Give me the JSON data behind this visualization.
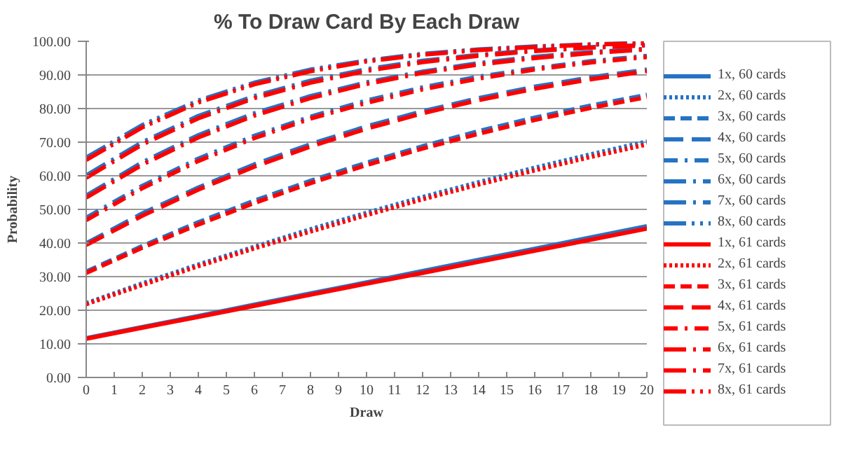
{
  "chart_data": {
    "type": "line",
    "title": "% To Draw Card By Each Draw",
    "xlabel": "Draw",
    "ylabel": "Probability",
    "x": [
      0,
      2,
      4,
      6,
      8,
      10,
      12,
      14,
      16,
      18,
      20
    ],
    "xlim": [
      0,
      20
    ],
    "xticks": [
      0,
      1,
      2,
      3,
      4,
      5,
      6,
      7,
      8,
      9,
      10,
      11,
      12,
      13,
      14,
      15,
      16,
      17,
      18,
      19,
      20
    ],
    "ylim": [
      0,
      100
    ],
    "yticks": [
      {
        "value": 0,
        "label": "0.00"
      },
      {
        "value": 10,
        "label": "10.00"
      },
      {
        "value": 20,
        "label": "20.00"
      },
      {
        "value": 30,
        "label": "30.00"
      },
      {
        "value": 40,
        "label": "40.00"
      },
      {
        "value": 50,
        "label": "50.00"
      },
      {
        "value": 60,
        "label": "60.00"
      },
      {
        "value": 70,
        "label": "70.00"
      },
      {
        "value": 80,
        "label": "80.00"
      },
      {
        "value": 90,
        "label": "90.00"
      },
      {
        "value": 100,
        "label": "100.00"
      }
    ],
    "grid": "y",
    "legend": "right",
    "marker": "none",
    "series": [
      {
        "name": "1x, 60 cards",
        "color": "#2673c4",
        "line_style": "solid",
        "values": [
          11.7,
          15.0,
          18.3,
          21.7,
          25.0,
          28.3,
          31.7,
          35.0,
          38.3,
          41.7,
          45.0
        ]
      },
      {
        "name": "2x, 60 cards",
        "color": "#2673c4",
        "line_style": "dotted",
        "values": [
          22.1,
          28.0,
          33.6,
          38.9,
          44.1,
          49.0,
          53.7,
          58.1,
          62.4,
          66.4,
          70.2
        ]
      },
      {
        "name": "3x, 60 cards",
        "color": "#2673c4",
        "line_style": "dashed",
        "values": [
          31.5,
          39.1,
          46.2,
          52.6,
          58.5,
          63.9,
          68.8,
          73.3,
          77.3,
          80.9,
          84.1
        ]
      },
      {
        "name": "4x, 60 cards",
        "color": "#2673c4",
        "line_style": "longdash",
        "values": [
          39.9,
          48.8,
          56.5,
          63.4,
          69.4,
          74.7,
          79.2,
          83.1,
          86.5,
          89.3,
          91.6
        ]
      },
      {
        "name": "5x, 60 cards",
        "color": "#2673c4",
        "line_style": "dashdot",
        "values": [
          47.5,
          57.0,
          65.1,
          71.9,
          77.6,
          82.4,
          86.3,
          89.5,
          92.0,
          94.1,
          95.7
        ]
      },
      {
        "name": "6x, 60 cards",
        "color": "#2673c4",
        "line_style": "longdashdot",
        "values": [
          54.1,
          64.0,
          72.1,
          78.6,
          83.7,
          87.8,
          91.0,
          93.5,
          95.4,
          96.8,
          97.8
        ]
      },
      {
        "name": "7x, 60 cards",
        "color": "#2673c4",
        "line_style": "longdashdot",
        "values": [
          60.1,
          70.0,
          77.8,
          83.7,
          88.3,
          91.7,
          94.2,
          96.0,
          97.3,
          98.3,
          98.9
        ]
      },
      {
        "name": "8x, 60 cards",
        "color": "#2673c4",
        "line_style": "longdashdotdot",
        "values": [
          65.4,
          75.1,
          82.4,
          87.7,
          91.6,
          94.3,
          96.3,
          97.6,
          98.5,
          99.1,
          99.5
        ]
      },
      {
        "name": "1x, 61 cards",
        "color": "#ff0000",
        "line_style": "solid",
        "values": [
          11.5,
          14.8,
          18.0,
          21.3,
          24.6,
          27.9,
          31.1,
          34.4,
          37.7,
          41.0,
          44.3
        ]
      },
      {
        "name": "2x, 61 cards",
        "color": "#ff0000",
        "line_style": "dotted",
        "values": [
          21.8,
          27.5,
          33.1,
          38.4,
          43.4,
          48.3,
          53.0,
          57.4,
          61.6,
          65.6,
          69.3
        ]
      },
      {
        "name": "3x, 61 cards",
        "color": "#ff0000",
        "line_style": "dashed",
        "values": [
          31.1,
          38.6,
          45.5,
          51.9,
          57.8,
          63.2,
          68.1,
          72.5,
          76.6,
          80.2,
          83.4
        ]
      },
      {
        "name": "4x, 61 cards",
        "color": "#ff0000",
        "line_style": "longdash",
        "values": [
          39.4,
          48.1,
          55.9,
          62.7,
          68.7,
          74.0,
          78.6,
          82.5,
          85.9,
          88.7,
          91.1
        ]
      },
      {
        "name": "5x, 61 cards",
        "color": "#ff0000",
        "line_style": "dashdot",
        "values": [
          46.8,
          56.3,
          64.4,
          71.2,
          77.0,
          81.7,
          85.7,
          88.9,
          91.6,
          93.7,
          95.3
        ]
      },
      {
        "name": "6x, 61 cards",
        "color": "#ff0000",
        "line_style": "longdashdot",
        "values": [
          53.5,
          63.3,
          71.4,
          77.9,
          83.1,
          87.3,
          90.6,
          93.1,
          95.0,
          96.5,
          97.6
        ]
      },
      {
        "name": "7x, 61 cards",
        "color": "#ff0000",
        "line_style": "longdashdot",
        "values": [
          59.4,
          69.3,
          77.1,
          83.1,
          87.7,
          91.2,
          93.8,
          95.7,
          97.1,
          98.1,
          98.8
        ]
      },
      {
        "name": "8x, 61 cards",
        "color": "#ff0000",
        "line_style": "longdashdotdot",
        "values": [
          64.7,
          74.4,
          81.8,
          87.2,
          91.1,
          94.0,
          96.0,
          97.4,
          98.3,
          99.0,
          99.4
        ]
      }
    ]
  }
}
